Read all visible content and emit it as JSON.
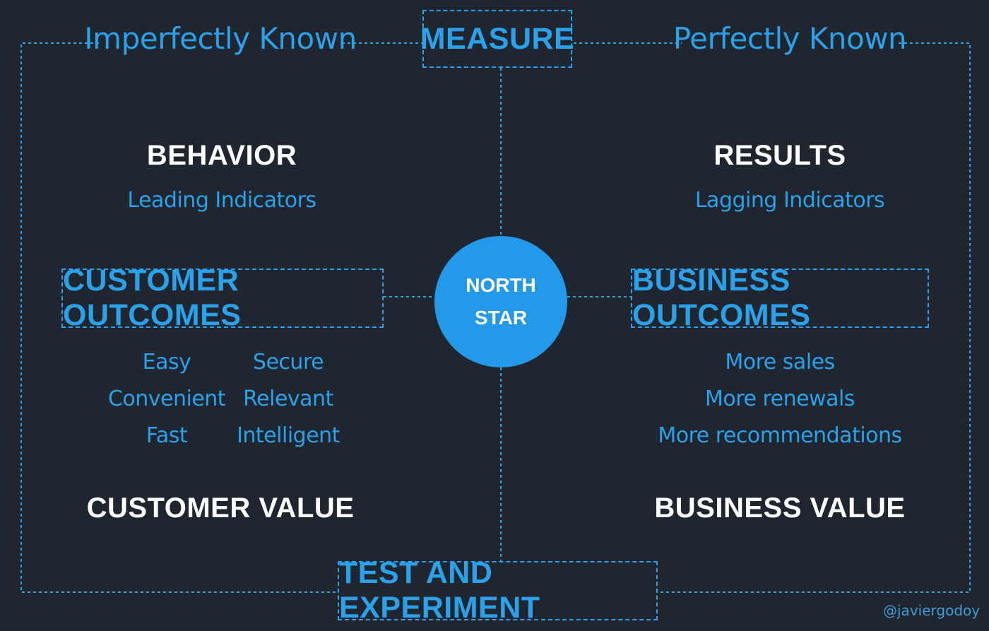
{
  "header": {
    "measure": "MEASURE",
    "left_label": "Imperfectly Known",
    "right_label": "Perfectly Known"
  },
  "left": {
    "title": "BEHAVIOR",
    "subtitle": "Leading Indicators",
    "outcomes_box": "CUSTOMER OUTCOMES",
    "items_col1": [
      "Easy",
      "Convenient",
      "Fast"
    ],
    "items_col2": [
      "Secure",
      "Relevant",
      "Intelligent"
    ],
    "value": "CUSTOMER VALUE"
  },
  "right": {
    "title": "RESULTS",
    "subtitle": "Lagging Indicators",
    "outcomes_box": "BUSINESS OUTCOMES",
    "items": [
      "More sales",
      "More renewals",
      "More recommendations"
    ],
    "value": "BUSINESS VALUE"
  },
  "center": {
    "line1": "NORTH",
    "line2": "STAR"
  },
  "footer": {
    "test": "TEST AND EXPERIMENT",
    "credit": "@javiergodoy"
  },
  "colors": {
    "background": "#1f2630",
    "accent": "#2aa1e8",
    "circle": "#2299e9",
    "heading": "#ffffff"
  }
}
